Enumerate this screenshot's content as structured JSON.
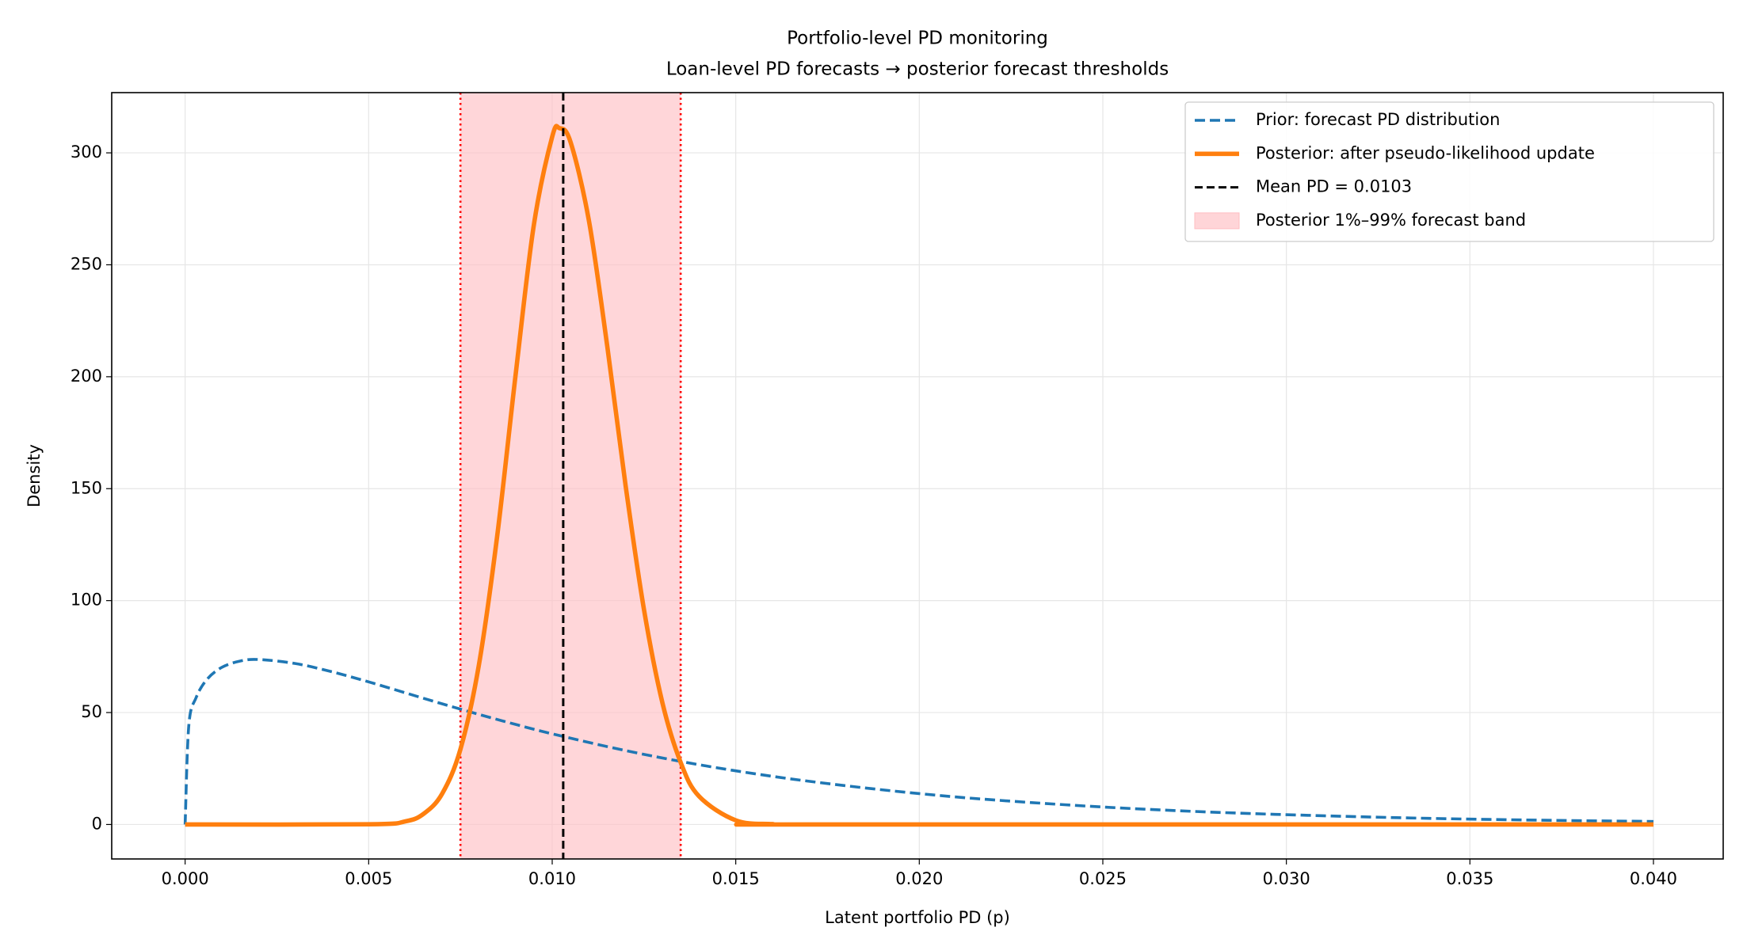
{
  "chart_data": {
    "type": "line",
    "title": "Portfolio-level PD monitoring",
    "subtitle": "Loan-level PD forecasts → posterior forecast thresholds",
    "x_label": "Latent portfolio PD (p)",
    "y_label": "Density",
    "xlim": [
      -0.002,
      0.0419
    ],
    "ylim": [
      -15.4,
      326.9
    ],
    "xticks": [
      {
        "value": 0,
        "label": "0.000"
      },
      {
        "value": 0.005,
        "label": "0.005"
      },
      {
        "value": 0.01,
        "label": "0.010"
      },
      {
        "value": 0.015,
        "label": "0.015"
      },
      {
        "value": 0.02,
        "label": "0.020"
      },
      {
        "value": 0.025,
        "label": "0.025"
      },
      {
        "value": 0.03,
        "label": "0.030"
      },
      {
        "value": 0.035,
        "label": "0.035"
      },
      {
        "value": 0.04,
        "label": "0.040"
      }
    ],
    "yticks": [
      0,
      50,
      100,
      150,
      200,
      250,
      300
    ],
    "grid": true,
    "legend": "upper right",
    "series": [
      {
        "name": "Prior: forecast PD distribution",
        "color": "#1f77b4",
        "style": "dashed",
        "x": [
          0,
          0.0001,
          0.0003,
          0.0006,
          0.001,
          0.0015,
          0.002,
          0.003,
          0.004,
          0.005,
          0.006,
          0.007,
          0.008,
          0.009,
          0.01,
          0.012,
          0.014,
          0.016,
          0.018,
          0.02,
          0.022,
          0.025,
          0.028,
          0.031,
          0.034,
          0.037,
          0.04
        ],
        "values": [
          0,
          44.2,
          56.7,
          64.9,
          70.2,
          73.0,
          73.7,
          71.9,
          68.2,
          63.7,
          58.8,
          53.9,
          49.2,
          44.7,
          40.5,
          33.0,
          26.7,
          21.5,
          17.3,
          13.8,
          11.0,
          7.8,
          5.5,
          3.9,
          2.7,
          1.9,
          1.35
        ]
      },
      {
        "name": "Posterior: after pseudo-likelihood update",
        "color": "#ff7f0e",
        "style": "solid",
        "x": [
          0,
          0.005,
          0.006,
          0.0065,
          0.007,
          0.0075,
          0.008,
          0.0085,
          0.009,
          0.0095,
          0.01,
          0.0102,
          0.0105,
          0.011,
          0.0115,
          0.012,
          0.0125,
          0.013,
          0.0135,
          0.014,
          0.015,
          0.016,
          0.017,
          0.04
        ],
        "values": [
          0,
          0.08,
          1.4,
          4.8,
          13.7,
          33.6,
          71,
          128.7,
          200.4,
          267.8,
          307.2,
          311,
          304.8,
          269.7,
          213.6,
          151.3,
          96,
          54.5,
          27.7,
          12.6,
          1.86,
          0.17,
          0,
          0
        ]
      }
    ],
    "mean_line": {
      "name": "Mean PD = 0.0103",
      "x": 0.0103,
      "color": "#000000"
    },
    "band": {
      "name": "Posterior 1%–99% forecast band",
      "x0": 0.0075,
      "x1": 0.0135,
      "color": "#ffc0c4",
      "edge_color": "#ff0000"
    }
  }
}
